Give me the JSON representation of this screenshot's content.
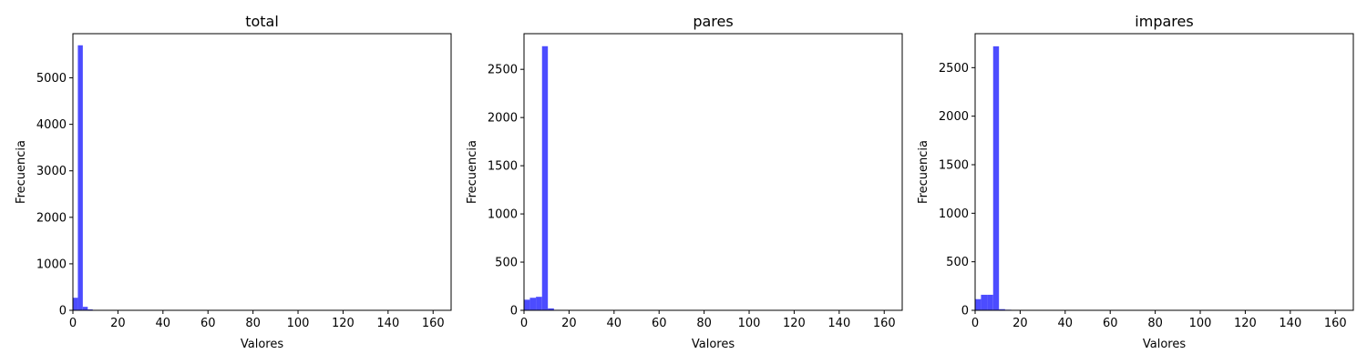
{
  "chart_data": [
    {
      "type": "bar",
      "title": "total",
      "xlabel": "Valores",
      "ylabel": "Frecuencia",
      "xlim": [
        0,
        168
      ],
      "ylim": [
        0,
        5950
      ],
      "xticks": [
        0,
        20,
        40,
        60,
        80,
        100,
        120,
        140,
        160
      ],
      "yticks": [
        0,
        1000,
        2000,
        3000,
        4000,
        5000
      ],
      "bin_width": 2.2,
      "bins": [
        {
          "x0": 0.0,
          "x1": 2.2,
          "value": 270
        },
        {
          "x0": 2.2,
          "x1": 4.4,
          "value": 5700
        },
        {
          "x0": 4.4,
          "x1": 6.6,
          "value": 75
        },
        {
          "x0": 6.6,
          "x1": 8.8,
          "value": 20
        },
        {
          "x0": 8.8,
          "x1": 11.0,
          "value": 8
        }
      ],
      "bar_color": "#4c4cff",
      "grid": false
    },
    {
      "type": "bar",
      "title": "pares",
      "xlabel": "Valores",
      "ylabel": "Frecuencia",
      "xlim": [
        0,
        168
      ],
      "ylim": [
        0,
        2870
      ],
      "xticks": [
        0,
        20,
        40,
        60,
        80,
        100,
        120,
        140,
        160
      ],
      "yticks": [
        0,
        500,
        1000,
        1500,
        2000,
        2500
      ],
      "bins": [
        {
          "x0": 0.0,
          "x1": 2.6,
          "value": 110
        },
        {
          "x0": 2.6,
          "x1": 5.3,
          "value": 130
        },
        {
          "x0": 5.3,
          "x1": 8.0,
          "value": 140
        },
        {
          "x0": 8.0,
          "x1": 10.6,
          "value": 2740
        },
        {
          "x0": 10.6,
          "x1": 13.3,
          "value": 20
        },
        {
          "x0": 13.3,
          "x1": 16.0,
          "value": 5
        }
      ],
      "bar_color": "#4c4cff",
      "grid": false
    },
    {
      "type": "bar",
      "title": "impares",
      "xlabel": "Valores",
      "ylabel": "Frecuencia",
      "xlim": [
        0,
        168
      ],
      "ylim": [
        0,
        2850
      ],
      "xticks": [
        0,
        20,
        40,
        60,
        80,
        100,
        120,
        140,
        160
      ],
      "yticks": [
        0,
        500,
        1000,
        1500,
        2000,
        2500
      ],
      "bins": [
        {
          "x0": 0.0,
          "x1": 2.6,
          "value": 115
        },
        {
          "x0": 2.6,
          "x1": 5.3,
          "value": 160
        },
        {
          "x0": 5.3,
          "x1": 8.0,
          "value": 160
        },
        {
          "x0": 8.0,
          "x1": 10.6,
          "value": 2720
        },
        {
          "x0": 10.6,
          "x1": 13.3,
          "value": 12
        },
        {
          "x0": 13.3,
          "x1": 16.0,
          "value": 6
        },
        {
          "x0": 16.0,
          "x1": 18.6,
          "value": 3
        }
      ],
      "bar_color": "#4c4cff",
      "grid": false
    }
  ]
}
